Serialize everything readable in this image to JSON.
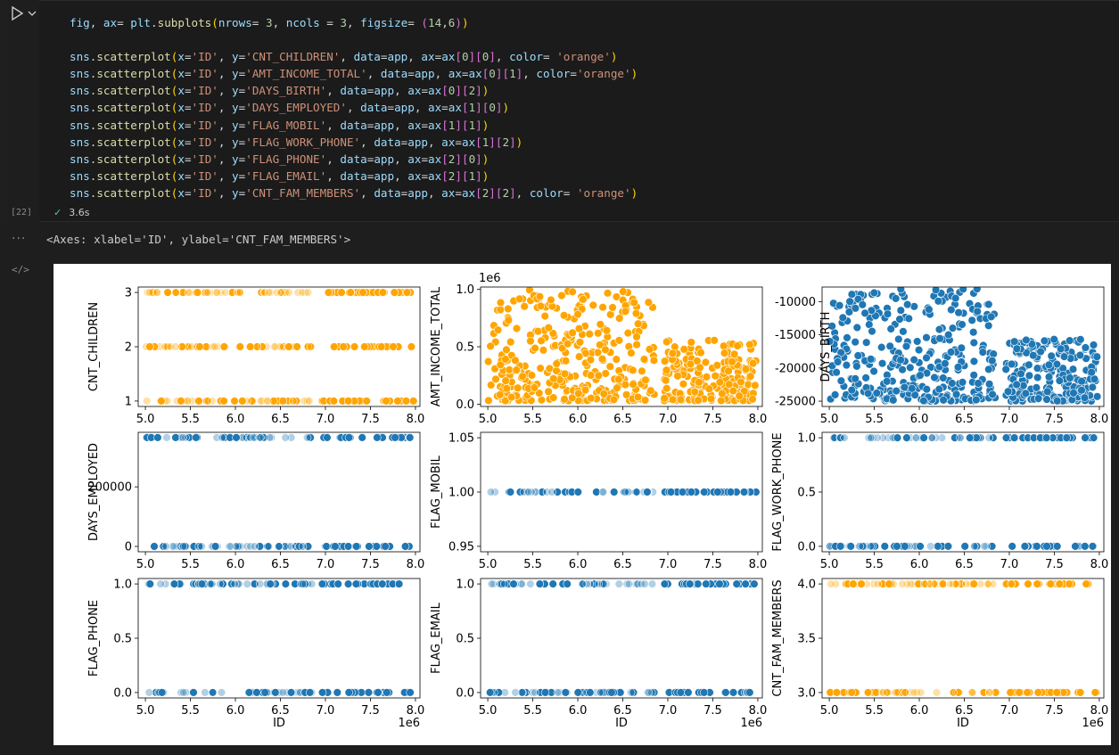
{
  "cell": {
    "execution_count": "[22]",
    "status_time": "3.6s",
    "code_lines": [
      [
        [
          "k-var",
          "fig"
        ],
        [
          "k-op",
          ", "
        ],
        [
          "k-var",
          "ax"
        ],
        [
          "k-op",
          "= "
        ],
        [
          "k-var",
          "plt"
        ],
        [
          "k-op",
          "."
        ],
        [
          "k-fn",
          "subplots"
        ],
        [
          "k-br1",
          "("
        ],
        [
          "k-var",
          "nrows"
        ],
        [
          "k-op",
          "= "
        ],
        [
          "k-num",
          "3"
        ],
        [
          "k-op",
          ", "
        ],
        [
          "k-var",
          "ncols"
        ],
        [
          "k-op",
          " = "
        ],
        [
          "k-num",
          "3"
        ],
        [
          "k-op",
          ", "
        ],
        [
          "k-var",
          "figsize"
        ],
        [
          "k-op",
          "= "
        ],
        [
          "k-br2",
          "("
        ],
        [
          "k-num",
          "14"
        ],
        [
          "k-op",
          ","
        ],
        [
          "k-num",
          "6"
        ],
        [
          "k-br2",
          ")"
        ],
        [
          "k-br1",
          ")"
        ]
      ],
      [],
      [
        [
          "k-var",
          "sns"
        ],
        [
          "k-op",
          "."
        ],
        [
          "k-fn",
          "scatterplot"
        ],
        [
          "k-br1",
          "("
        ],
        [
          "k-var",
          "x"
        ],
        [
          "k-op",
          "="
        ],
        [
          "k-str",
          "'ID'"
        ],
        [
          "k-op",
          ", "
        ],
        [
          "k-var",
          "y"
        ],
        [
          "k-op",
          "="
        ],
        [
          "k-str",
          "'CNT_CHILDREN'"
        ],
        [
          "k-op",
          ", "
        ],
        [
          "k-var",
          "data"
        ],
        [
          "k-op",
          "="
        ],
        [
          "k-var",
          "app"
        ],
        [
          "k-op",
          ", "
        ],
        [
          "k-var",
          "ax"
        ],
        [
          "k-op",
          "="
        ],
        [
          "k-var",
          "ax"
        ],
        [
          "k-br2",
          "["
        ],
        [
          "k-num",
          "0"
        ],
        [
          "k-br2",
          "]"
        ],
        [
          "k-br2",
          "["
        ],
        [
          "k-num",
          "0"
        ],
        [
          "k-br2",
          "]"
        ],
        [
          "k-op",
          ", "
        ],
        [
          "k-var",
          "color"
        ],
        [
          "k-op",
          "= "
        ],
        [
          "k-str",
          "'orange'"
        ],
        [
          "k-br1",
          ")"
        ]
      ],
      [
        [
          "k-var",
          "sns"
        ],
        [
          "k-op",
          "."
        ],
        [
          "k-fn",
          "scatterplot"
        ],
        [
          "k-br1",
          "("
        ],
        [
          "k-var",
          "x"
        ],
        [
          "k-op",
          "="
        ],
        [
          "k-str",
          "'ID'"
        ],
        [
          "k-op",
          ", "
        ],
        [
          "k-var",
          "y"
        ],
        [
          "k-op",
          "="
        ],
        [
          "k-str",
          "'AMT_INCOME_TOTAL'"
        ],
        [
          "k-op",
          ", "
        ],
        [
          "k-var",
          "data"
        ],
        [
          "k-op",
          "="
        ],
        [
          "k-var",
          "app"
        ],
        [
          "k-op",
          ", "
        ],
        [
          "k-var",
          "ax"
        ],
        [
          "k-op",
          "="
        ],
        [
          "k-var",
          "ax"
        ],
        [
          "k-br2",
          "["
        ],
        [
          "k-num",
          "0"
        ],
        [
          "k-br2",
          "]"
        ],
        [
          "k-br2",
          "["
        ],
        [
          "k-num",
          "1"
        ],
        [
          "k-br2",
          "]"
        ],
        [
          "k-op",
          ", "
        ],
        [
          "k-var",
          "color"
        ],
        [
          "k-op",
          "="
        ],
        [
          "k-str",
          "'orange'"
        ],
        [
          "k-br1",
          ")"
        ]
      ],
      [
        [
          "k-var",
          "sns"
        ],
        [
          "k-op",
          "."
        ],
        [
          "k-fn",
          "scatterplot"
        ],
        [
          "k-br1",
          "("
        ],
        [
          "k-var",
          "x"
        ],
        [
          "k-op",
          "="
        ],
        [
          "k-str",
          "'ID'"
        ],
        [
          "k-op",
          ", "
        ],
        [
          "k-var",
          "y"
        ],
        [
          "k-op",
          "="
        ],
        [
          "k-str",
          "'DAYS_BIRTH'"
        ],
        [
          "k-op",
          ", "
        ],
        [
          "k-var",
          "data"
        ],
        [
          "k-op",
          "="
        ],
        [
          "k-var",
          "app"
        ],
        [
          "k-op",
          ", "
        ],
        [
          "k-var",
          "ax"
        ],
        [
          "k-op",
          "="
        ],
        [
          "k-var",
          "ax"
        ],
        [
          "k-br2",
          "["
        ],
        [
          "k-num",
          "0"
        ],
        [
          "k-br2",
          "]"
        ],
        [
          "k-br2",
          "["
        ],
        [
          "k-num",
          "2"
        ],
        [
          "k-br2",
          "]"
        ],
        [
          "k-br1",
          ")"
        ]
      ],
      [
        [
          "k-var",
          "sns"
        ],
        [
          "k-op",
          "."
        ],
        [
          "k-fn",
          "scatterplot"
        ],
        [
          "k-br1",
          "("
        ],
        [
          "k-var",
          "x"
        ],
        [
          "k-op",
          "="
        ],
        [
          "k-str",
          "'ID'"
        ],
        [
          "k-op",
          ", "
        ],
        [
          "k-var",
          "y"
        ],
        [
          "k-op",
          "="
        ],
        [
          "k-str",
          "'DAYS_EMPLOYED'"
        ],
        [
          "k-op",
          ", "
        ],
        [
          "k-var",
          "data"
        ],
        [
          "k-op",
          "="
        ],
        [
          "k-var",
          "app"
        ],
        [
          "k-op",
          ", "
        ],
        [
          "k-var",
          "ax"
        ],
        [
          "k-op",
          "="
        ],
        [
          "k-var",
          "ax"
        ],
        [
          "k-br2",
          "["
        ],
        [
          "k-num",
          "1"
        ],
        [
          "k-br2",
          "]"
        ],
        [
          "k-br2",
          "["
        ],
        [
          "k-num",
          "0"
        ],
        [
          "k-br2",
          "]"
        ],
        [
          "k-br1",
          ")"
        ]
      ],
      [
        [
          "k-var",
          "sns"
        ],
        [
          "k-op",
          "."
        ],
        [
          "k-fn",
          "scatterplot"
        ],
        [
          "k-br1",
          "("
        ],
        [
          "k-var",
          "x"
        ],
        [
          "k-op",
          "="
        ],
        [
          "k-str",
          "'ID'"
        ],
        [
          "k-op",
          ", "
        ],
        [
          "k-var",
          "y"
        ],
        [
          "k-op",
          "="
        ],
        [
          "k-str",
          "'FLAG_MOBIL'"
        ],
        [
          "k-op",
          ", "
        ],
        [
          "k-var",
          "data"
        ],
        [
          "k-op",
          "="
        ],
        [
          "k-var",
          "app"
        ],
        [
          "k-op",
          ", "
        ],
        [
          "k-var",
          "ax"
        ],
        [
          "k-op",
          "="
        ],
        [
          "k-var",
          "ax"
        ],
        [
          "k-br2",
          "["
        ],
        [
          "k-num",
          "1"
        ],
        [
          "k-br2",
          "]"
        ],
        [
          "k-br2",
          "["
        ],
        [
          "k-num",
          "1"
        ],
        [
          "k-br2",
          "]"
        ],
        [
          "k-br1",
          ")"
        ]
      ],
      [
        [
          "k-var",
          "sns"
        ],
        [
          "k-op",
          "."
        ],
        [
          "k-fn",
          "scatterplot"
        ],
        [
          "k-br1",
          "("
        ],
        [
          "k-var",
          "x"
        ],
        [
          "k-op",
          "="
        ],
        [
          "k-str",
          "'ID'"
        ],
        [
          "k-op",
          ", "
        ],
        [
          "k-var",
          "y"
        ],
        [
          "k-op",
          "="
        ],
        [
          "k-str",
          "'FLAG_WORK_PHONE'"
        ],
        [
          "k-op",
          ", "
        ],
        [
          "k-var",
          "data"
        ],
        [
          "k-op",
          "="
        ],
        [
          "k-var",
          "app"
        ],
        [
          "k-op",
          ", "
        ],
        [
          "k-var",
          "ax"
        ],
        [
          "k-op",
          "="
        ],
        [
          "k-var",
          "ax"
        ],
        [
          "k-br2",
          "["
        ],
        [
          "k-num",
          "1"
        ],
        [
          "k-br2",
          "]"
        ],
        [
          "k-br2",
          "["
        ],
        [
          "k-num",
          "2"
        ],
        [
          "k-br2",
          "]"
        ],
        [
          "k-br1",
          ")"
        ]
      ],
      [
        [
          "k-var",
          "sns"
        ],
        [
          "k-op",
          "."
        ],
        [
          "k-fn",
          "scatterplot"
        ],
        [
          "k-br1",
          "("
        ],
        [
          "k-var",
          "x"
        ],
        [
          "k-op",
          "="
        ],
        [
          "k-str",
          "'ID'"
        ],
        [
          "k-op",
          ", "
        ],
        [
          "k-var",
          "y"
        ],
        [
          "k-op",
          "="
        ],
        [
          "k-str",
          "'FLAG_PHONE'"
        ],
        [
          "k-op",
          ", "
        ],
        [
          "k-var",
          "data"
        ],
        [
          "k-op",
          "="
        ],
        [
          "k-var",
          "app"
        ],
        [
          "k-op",
          ", "
        ],
        [
          "k-var",
          "ax"
        ],
        [
          "k-op",
          "="
        ],
        [
          "k-var",
          "ax"
        ],
        [
          "k-br2",
          "["
        ],
        [
          "k-num",
          "2"
        ],
        [
          "k-br2",
          "]"
        ],
        [
          "k-br2",
          "["
        ],
        [
          "k-num",
          "0"
        ],
        [
          "k-br2",
          "]"
        ],
        [
          "k-br1",
          ")"
        ]
      ],
      [
        [
          "k-var",
          "sns"
        ],
        [
          "k-op",
          "."
        ],
        [
          "k-fn",
          "scatterplot"
        ],
        [
          "k-br1",
          "("
        ],
        [
          "k-var",
          "x"
        ],
        [
          "k-op",
          "="
        ],
        [
          "k-str",
          "'ID'"
        ],
        [
          "k-op",
          ", "
        ],
        [
          "k-var",
          "y"
        ],
        [
          "k-op",
          "="
        ],
        [
          "k-str",
          "'FLAG_EMAIL'"
        ],
        [
          "k-op",
          ", "
        ],
        [
          "k-var",
          "data"
        ],
        [
          "k-op",
          "="
        ],
        [
          "k-var",
          "app"
        ],
        [
          "k-op",
          ", "
        ],
        [
          "k-var",
          "ax"
        ],
        [
          "k-op",
          "="
        ],
        [
          "k-var",
          "ax"
        ],
        [
          "k-br2",
          "["
        ],
        [
          "k-num",
          "2"
        ],
        [
          "k-br2",
          "]"
        ],
        [
          "k-br2",
          "["
        ],
        [
          "k-num",
          "1"
        ],
        [
          "k-br2",
          "]"
        ],
        [
          "k-br1",
          ")"
        ]
      ],
      [
        [
          "k-var",
          "sns"
        ],
        [
          "k-op",
          "."
        ],
        [
          "k-fn",
          "scatterplot"
        ],
        [
          "k-br1",
          "("
        ],
        [
          "k-var",
          "x"
        ],
        [
          "k-op",
          "="
        ],
        [
          "k-str",
          "'ID'"
        ],
        [
          "k-op",
          ", "
        ],
        [
          "k-var",
          "y"
        ],
        [
          "k-op",
          "="
        ],
        [
          "k-str",
          "'CNT_FAM_MEMBERS'"
        ],
        [
          "k-op",
          ", "
        ],
        [
          "k-var",
          "data"
        ],
        [
          "k-op",
          "="
        ],
        [
          "k-var",
          "app"
        ],
        [
          "k-op",
          ", "
        ],
        [
          "k-var",
          "ax"
        ],
        [
          "k-op",
          "="
        ],
        [
          "k-var",
          "ax"
        ],
        [
          "k-br2",
          "["
        ],
        [
          "k-num",
          "2"
        ],
        [
          "k-br2",
          "]"
        ],
        [
          "k-br2",
          "["
        ],
        [
          "k-num",
          "2"
        ],
        [
          "k-br2",
          "]"
        ],
        [
          "k-op",
          ", "
        ],
        [
          "k-var",
          "color"
        ],
        [
          "k-op",
          "= "
        ],
        [
          "k-str",
          "'orange'"
        ],
        [
          "k-br1",
          ")"
        ]
      ]
    ]
  },
  "output": {
    "more_label": "···",
    "repr_text": "<Axes: xlabel='ID', ylabel='CNT_FAM_MEMBERS'>",
    "code_icon_label": "</>"
  },
  "colors": {
    "orange": "#ffa500",
    "blue": "#1f77b4"
  },
  "chart_data": [
    {
      "type": "scatter",
      "ylabel": "CNT_CHILDREN",
      "xlabel": "",
      "color": "orange",
      "x_ticks": [
        "5.0",
        "5.5",
        "6.0",
        "6.5",
        "7.0",
        "7.5",
        "8.0"
      ],
      "xlim": [
        4.92,
        8.05
      ],
      "y_ticks": [
        1,
        2,
        3
      ],
      "ylim": [
        0.9,
        3.1
      ],
      "y_levels": [
        1,
        2,
        3
      ],
      "offset_label": ""
    },
    {
      "type": "scatter",
      "ylabel": "AMT_INCOME_TOTAL",
      "xlabel": "",
      "color": "orange",
      "x_ticks": [
        "5.0",
        "5.5",
        "6.0",
        "6.5",
        "7.0",
        "7.5",
        "8.0"
      ],
      "xlim": [
        4.92,
        8.05
      ],
      "y_ticks": [
        0.0,
        0.5,
        1.0
      ],
      "ylim": [
        -0.02,
        1.02
      ],
      "y_range": [
        0.03,
        1.0
      ],
      "offset_label": "1e6"
    },
    {
      "type": "scatter",
      "ylabel": "DAYS_BIRTH",
      "xlabel": "",
      "color": "blue",
      "x_ticks": [
        "5.0",
        "5.5",
        "6.0",
        "6.5",
        "7.0",
        "7.5",
        "8.0"
      ],
      "xlim": [
        4.92,
        8.05
      ],
      "y_ticks": [
        -10000,
        -15000,
        -20000,
        -25000
      ],
      "ylim": [
        -25800,
        -7800
      ],
      "y_range": [
        -25000,
        -8000
      ],
      "offset_label": ""
    },
    {
      "type": "scatter",
      "ylabel": "DAYS_EMPLOYED",
      "xlabel": "",
      "color": "blue",
      "x_ticks": [
        "5.0",
        "5.5",
        "6.0",
        "6.5",
        "7.0",
        "7.5",
        "8.0"
      ],
      "xlim": [
        4.92,
        8.05
      ],
      "y_ticks": [
        0,
        200000
      ],
      "ylim": [
        -18000,
        383000
      ],
      "y_levels": [
        0,
        365243
      ],
      "offset_label": ""
    },
    {
      "type": "scatter",
      "ylabel": "FLAG_MOBIL",
      "xlabel": "",
      "color": "blue",
      "x_ticks": [
        "5.0",
        "5.5",
        "6.0",
        "6.5",
        "7.0",
        "7.5",
        "8.0"
      ],
      "xlim": [
        4.92,
        8.05
      ],
      "y_ticks": [
        0.95,
        1.0,
        1.05
      ],
      "ylim": [
        0.945,
        1.055
      ],
      "y_levels": [
        1.0
      ],
      "offset_label": ""
    },
    {
      "type": "scatter",
      "ylabel": "FLAG_WORK_PHONE",
      "xlabel": "",
      "color": "blue",
      "x_ticks": [
        "5.0",
        "5.5",
        "6.0",
        "6.5",
        "7.0",
        "7.5",
        "8.0"
      ],
      "xlim": [
        4.92,
        8.05
      ],
      "y_ticks": [
        0.0,
        0.5,
        1.0
      ],
      "ylim": [
        -0.05,
        1.05
      ],
      "y_levels": [
        0,
        1
      ],
      "offset_label": ""
    },
    {
      "type": "scatter",
      "ylabel": "FLAG_PHONE",
      "xlabel": "ID",
      "color": "blue",
      "x_ticks": [
        "5.0",
        "5.5",
        "6.0",
        "6.5",
        "7.0",
        "7.5",
        "8.0"
      ],
      "xlim": [
        4.92,
        8.05
      ],
      "y_ticks": [
        0.0,
        0.5,
        1.0
      ],
      "ylim": [
        -0.05,
        1.05
      ],
      "y_levels": [
        0,
        1
      ],
      "offset_label": "1e6"
    },
    {
      "type": "scatter",
      "ylabel": "FLAG_EMAIL",
      "xlabel": "ID",
      "color": "blue",
      "x_ticks": [
        "5.0",
        "5.5",
        "6.0",
        "6.5",
        "7.0",
        "7.5",
        "8.0"
      ],
      "xlim": [
        4.92,
        8.05
      ],
      "y_ticks": [
        0.0,
        0.5,
        1.0
      ],
      "ylim": [
        -0.05,
        1.05
      ],
      "y_levels": [
        0,
        1
      ],
      "offset_label": "1e6"
    },
    {
      "type": "scatter",
      "ylabel": "CNT_FAM_MEMBERS",
      "xlabel": "ID",
      "color": "orange",
      "x_ticks": [
        "5.0",
        "5.5",
        "6.0",
        "6.5",
        "7.0",
        "7.5",
        "8.0"
      ],
      "xlim": [
        4.92,
        8.05
      ],
      "y_ticks": [
        3.0,
        3.5,
        4.0
      ],
      "ylim": [
        2.95,
        4.05
      ],
      "y_levels": [
        3,
        4
      ],
      "offset_label": "1e6"
    }
  ]
}
